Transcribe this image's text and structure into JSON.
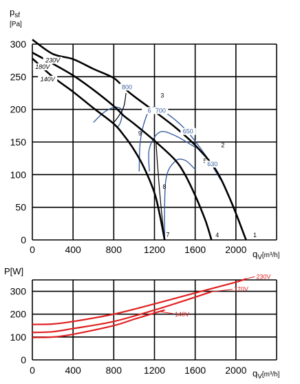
{
  "chart_data": [
    {
      "type": "line",
      "ylabel": "psf [Pa]",
      "ylabel_main": "p",
      "ylabel_sub": "sf",
      "ylabel_unit": "[Pa]",
      "xlabel": "qv[m³/h]",
      "xlabel_main": "q",
      "xlabel_sub": "V",
      "xlabel_unit": "[m³/h]",
      "xlim": [
        0,
        2400
      ],
      "ylim": [
        0,
        300
      ],
      "x_ticks": [
        "0",
        "400",
        "800",
        "1200",
        "1600",
        "2000"
      ],
      "y_ticks": [
        "0",
        "50",
        "100",
        "150",
        "200",
        "250",
        "300"
      ],
      "grid": true,
      "series": [
        {
          "name": "230V",
          "points": [
            [
              0,
              307
            ],
            [
              200,
              285
            ],
            [
              400,
              277
            ],
            [
              600,
              262
            ],
            [
              800,
              248
            ],
            [
              900,
              233
            ],
            [
              1000,
              220
            ],
            [
              1200,
              197
            ],
            [
              1400,
              173
            ],
            [
              1600,
              145
            ],
            [
              1800,
              108
            ],
            [
              1950,
              60
            ],
            [
              2100,
              0
            ]
          ]
        },
        {
          "name": "180V",
          "points": [
            [
              0,
              287
            ],
            [
              200,
              270
            ],
            [
              400,
              252
            ],
            [
              600,
              230
            ],
            [
              800,
              205
            ],
            [
              900,
              190
            ],
            [
              1000,
              178
            ],
            [
              1200,
              152
            ],
            [
              1400,
              123
            ],
            [
              1500,
              100
            ],
            [
              1600,
              68
            ],
            [
              1700,
              30
            ],
            [
              1760,
              0
            ]
          ]
        },
        {
          "name": "140V",
          "points": [
            [
              0,
              278
            ],
            [
              200,
              250
            ],
            [
              400,
              227
            ],
            [
              600,
              202
            ],
            [
              800,
              178
            ],
            [
              900,
              160
            ],
            [
              1000,
              138
            ],
            [
              1100,
              110
            ],
            [
              1200,
              72
            ],
            [
              1250,
              40
            ],
            [
              1300,
              0
            ]
          ]
        }
      ],
      "point_labels": [
        "1",
        "2",
        "3",
        "4",
        "5",
        "7",
        "8",
        "9"
      ],
      "efficiency_curves": [
        {
          "label": "800",
          "points": [
            [
              600,
              180
            ],
            [
              700,
              195
            ],
            [
              800,
              203
            ],
            [
              870,
              201
            ],
            [
              880,
              190
            ],
            [
              860,
              178
            ],
            [
              830,
              172
            ]
          ]
        },
        {
          "label": "700",
          "points": [
            [
              1050,
              105
            ],
            [
              1060,
              150
            ],
            [
              1110,
              185
            ],
            [
              1180,
              203
            ],
            [
              1300,
              196
            ],
            [
              1500,
              170
            ],
            [
              1700,
              130
            ],
            [
              1850,
              92
            ]
          ]
        },
        {
          "label": "650",
          "points": [
            [
              1150,
              105
            ],
            [
              1150,
              140
            ],
            [
              1250,
              165
            ],
            [
              1400,
              160
            ],
            [
              1600,
              142
            ]
          ]
        },
        {
          "label": "630",
          "points": [
            [
              1300,
              0
            ],
            [
              1310,
              90
            ],
            [
              1400,
              120
            ],
            [
              1500,
              122
            ],
            [
              1600,
              108
            ]
          ]
        }
      ],
      "iso_labels": [
        "800",
        "6",
        "700",
        "650",
        "630"
      ]
    },
    {
      "type": "line",
      "ylabel": "P[W]",
      "xlabel": "qv[m³/h]",
      "xlabel_main": "q",
      "xlabel_sub": "V",
      "xlabel_unit": "[m³/h]",
      "xlim": [
        0,
        2400
      ],
      "ylim": [
        0,
        350
      ],
      "x_ticks": [
        "0",
        "400",
        "800",
        "1200",
        "1600",
        "2000"
      ],
      "y_ticks": [
        "0",
        "100",
        "200",
        "300"
      ],
      "grid": true,
      "color": "#e02020",
      "series": [
        {
          "name": "230V",
          "points": [
            [
              0,
              155
            ],
            [
              200,
              157
            ],
            [
              400,
              168
            ],
            [
              800,
              200
            ],
            [
              1200,
              245
            ],
            [
              1600,
              293
            ],
            [
              2000,
              340
            ],
            [
              2100,
              355
            ]
          ]
        },
        {
          "name": "170V",
          "points": [
            [
              0,
              120
            ],
            [
              200,
              123
            ],
            [
              400,
              137
            ],
            [
              800,
              168
            ],
            [
              1200,
              218
            ],
            [
              1500,
              260
            ],
            [
              1760,
              298
            ]
          ]
        },
        {
          "name": "140V",
          "points": [
            [
              0,
              98
            ],
            [
              200,
              100
            ],
            [
              400,
              112
            ],
            [
              800,
              150
            ],
            [
              1000,
              178
            ],
            [
              1200,
              205
            ],
            [
              1300,
              218
            ]
          ]
        }
      ]
    }
  ]
}
